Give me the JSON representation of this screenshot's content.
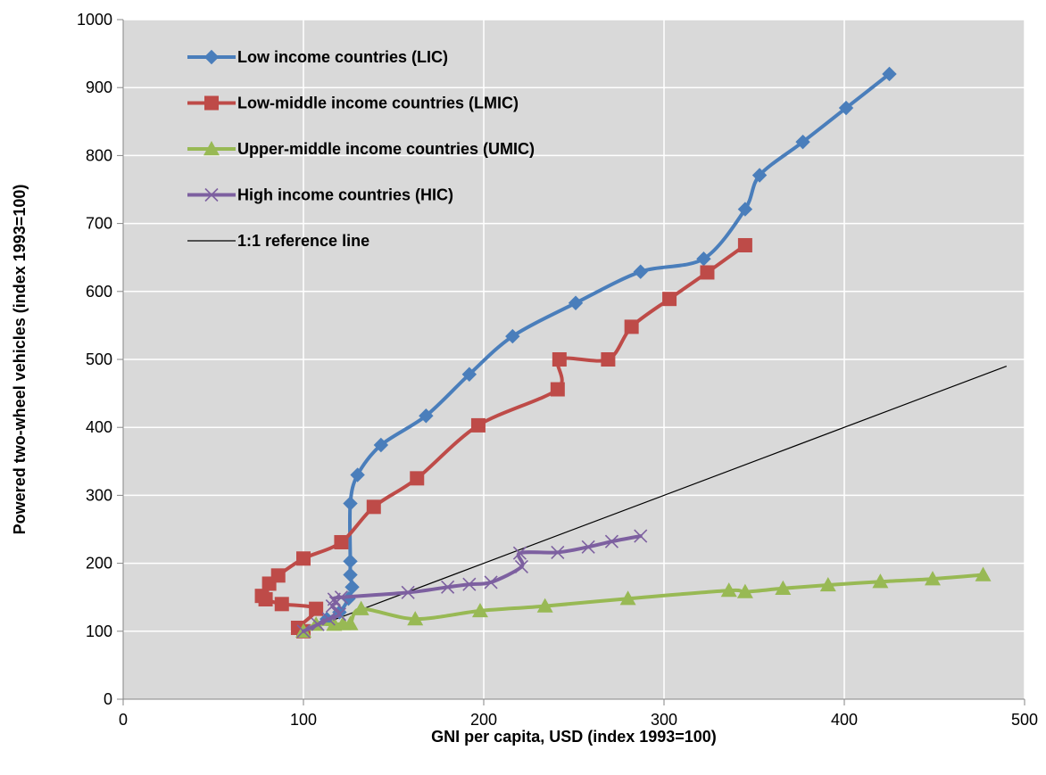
{
  "chart_data": {
    "type": "line",
    "title": "",
    "xlabel": "GNI per capita, USD (index 1993=100)",
    "ylabel": "Powered two-wheel vehicles (index 1993=100)",
    "xlim": [
      0,
      500
    ],
    "ylim": [
      0,
      1000
    ],
    "xticks": [
      "0",
      "100",
      "200",
      "300",
      "400",
      "500"
    ],
    "yticks": [
      "0",
      "100",
      "200",
      "300",
      "400",
      "500",
      "600",
      "700",
      "800",
      "900",
      "1000"
    ],
    "grid": true,
    "plot_background": "#d9d9d9",
    "legend_placement": "top-left",
    "series": [
      {
        "name": "Low income countries (LIC)",
        "color": "#4a7ebb",
        "marker": "diamond",
        "points": [
          [
            100,
            100
          ],
          [
            113,
            118
          ],
          [
            120,
            128
          ],
          [
            125,
            148
          ],
          [
            127,
            165
          ],
          [
            126,
            183
          ],
          [
            126,
            203
          ],
          [
            126,
            288
          ],
          [
            130,
            330
          ],
          [
            143,
            374
          ],
          [
            168,
            417
          ],
          [
            192,
            478
          ],
          [
            216,
            534
          ],
          [
            251,
            583
          ],
          [
            287,
            629
          ],
          [
            322,
            648
          ],
          [
            345,
            721
          ],
          [
            353,
            771
          ],
          [
            377,
            820
          ],
          [
            401,
            870
          ],
          [
            425,
            920
          ]
        ]
      },
      {
        "name": "Low-middle income countries (LMIC)",
        "color": "#be4b48",
        "marker": "square",
        "points": [
          [
            100,
            100
          ],
          [
            97,
            105
          ],
          [
            107,
            133
          ],
          [
            88,
            140
          ],
          [
            79,
            147
          ],
          [
            77,
            152
          ],
          [
            81,
            170
          ],
          [
            86,
            182
          ],
          [
            100,
            207
          ],
          [
            121,
            231
          ],
          [
            139,
            283
          ],
          [
            163,
            325
          ],
          [
            197,
            403
          ],
          [
            241,
            456
          ],
          [
            242,
            500
          ],
          [
            269,
            500
          ],
          [
            282,
            548
          ],
          [
            303,
            589
          ],
          [
            324,
            628
          ],
          [
            345,
            668
          ]
        ]
      },
      {
        "name": "Upper-middle income countries (UMIC)",
        "color": "#98b954",
        "marker": "triangle",
        "points": [
          [
            100,
            100
          ],
          [
            107,
            110
          ],
          [
            117,
            110
          ],
          [
            122,
            111
          ],
          [
            126,
            111
          ],
          [
            132,
            133
          ],
          [
            162,
            118
          ],
          [
            198,
            130
          ],
          [
            234,
            137
          ],
          [
            280,
            148
          ],
          [
            336,
            160
          ],
          [
            345,
            158
          ],
          [
            366,
            163
          ],
          [
            391,
            168
          ],
          [
            420,
            173
          ],
          [
            449,
            177
          ],
          [
            477,
            183
          ]
        ]
      },
      {
        "name": "High income countries (HIC)",
        "color": "#7d60a0",
        "marker": "x",
        "points": [
          [
            100,
            100
          ],
          [
            108,
            110
          ],
          [
            114,
            118
          ],
          [
            120,
            125
          ],
          [
            116,
            137
          ],
          [
            118,
            142
          ],
          [
            117,
            147
          ],
          [
            121,
            150
          ],
          [
            158,
            157
          ],
          [
            180,
            165
          ],
          [
            192,
            169
          ],
          [
            204,
            172
          ],
          [
            221,
            195
          ],
          [
            220,
            215
          ],
          [
            241,
            216
          ],
          [
            258,
            224
          ],
          [
            271,
            232
          ],
          [
            287,
            240
          ]
        ]
      },
      {
        "name": "1:1 reference line",
        "color": "#000000",
        "marker": "none",
        "points": [
          [
            100,
            100
          ],
          [
            490,
            490
          ]
        ]
      }
    ]
  }
}
